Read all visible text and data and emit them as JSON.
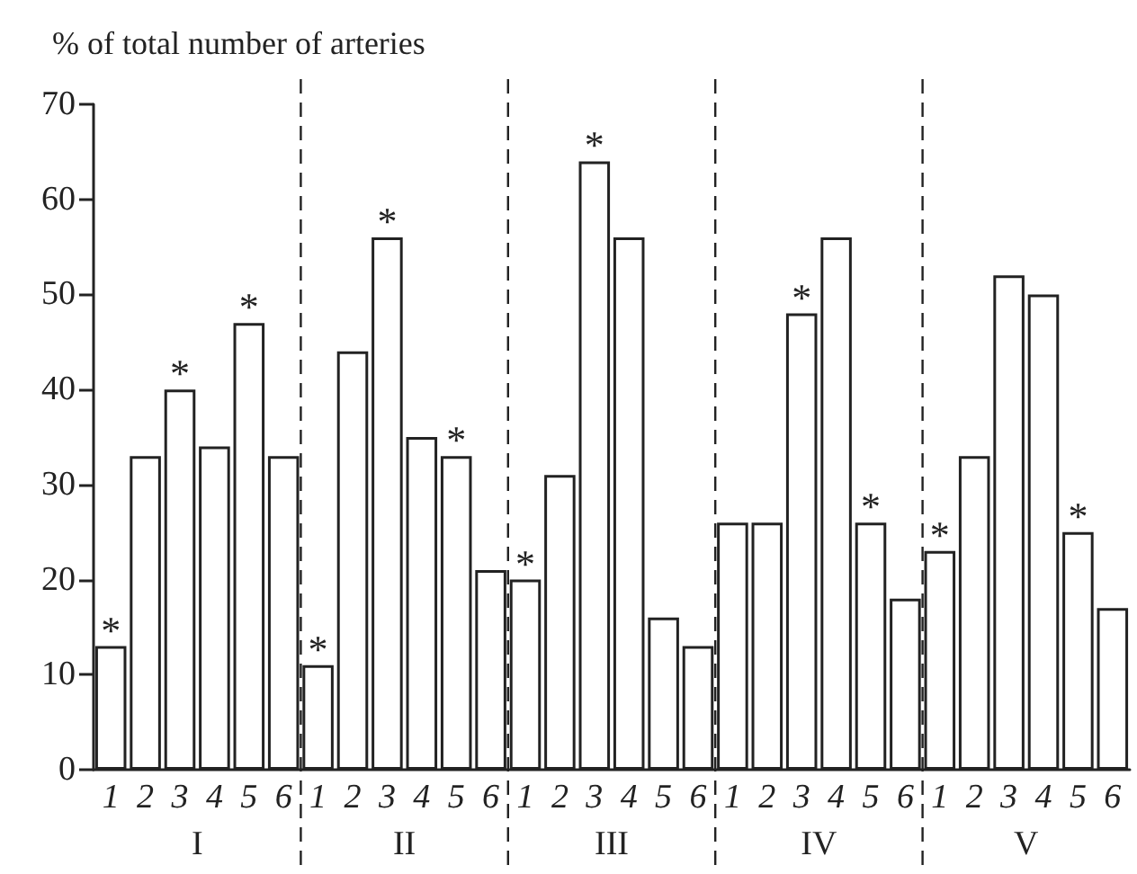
{
  "chart_data": {
    "type": "bar",
    "ylabel": "% of total number of arteries",
    "categories": [
      "1",
      "2",
      "3",
      "4",
      "5",
      "6",
      "1",
      "2",
      "3",
      "4",
      "5",
      "6",
      "1",
      "2",
      "3",
      "4",
      "5",
      "6",
      "1",
      "2",
      "3",
      "4",
      "5",
      "6",
      "1",
      "2",
      "3",
      "4",
      "5",
      "6"
    ],
    "values": [
      13,
      33,
      40,
      34,
      47,
      33,
      11,
      44,
      56,
      35,
      33,
      21,
      20,
      31,
      64,
      56,
      16,
      13,
      26,
      26,
      48,
      56,
      26,
      18,
      23,
      33,
      52,
      50,
      25,
      17
    ],
    "value_labels": [
      "*",
      null,
      "*",
      null,
      "*",
      null,
      "*",
      null,
      "*",
      null,
      "*",
      null,
      "*",
      null,
      "*",
      null,
      null,
      null,
      null,
      null,
      "*",
      null,
      "*",
      null,
      "*",
      null,
      null,
      null,
      "*",
      null
    ],
    "color": "#ffffff",
    "annotations": [
      "I",
      "II",
      "III",
      "IV",
      "V"
    ],
    "ylim": [
      0,
      70
    ],
    "yticks": [
      0,
      10,
      20,
      30,
      40,
      50,
      60,
      70
    ]
  }
}
